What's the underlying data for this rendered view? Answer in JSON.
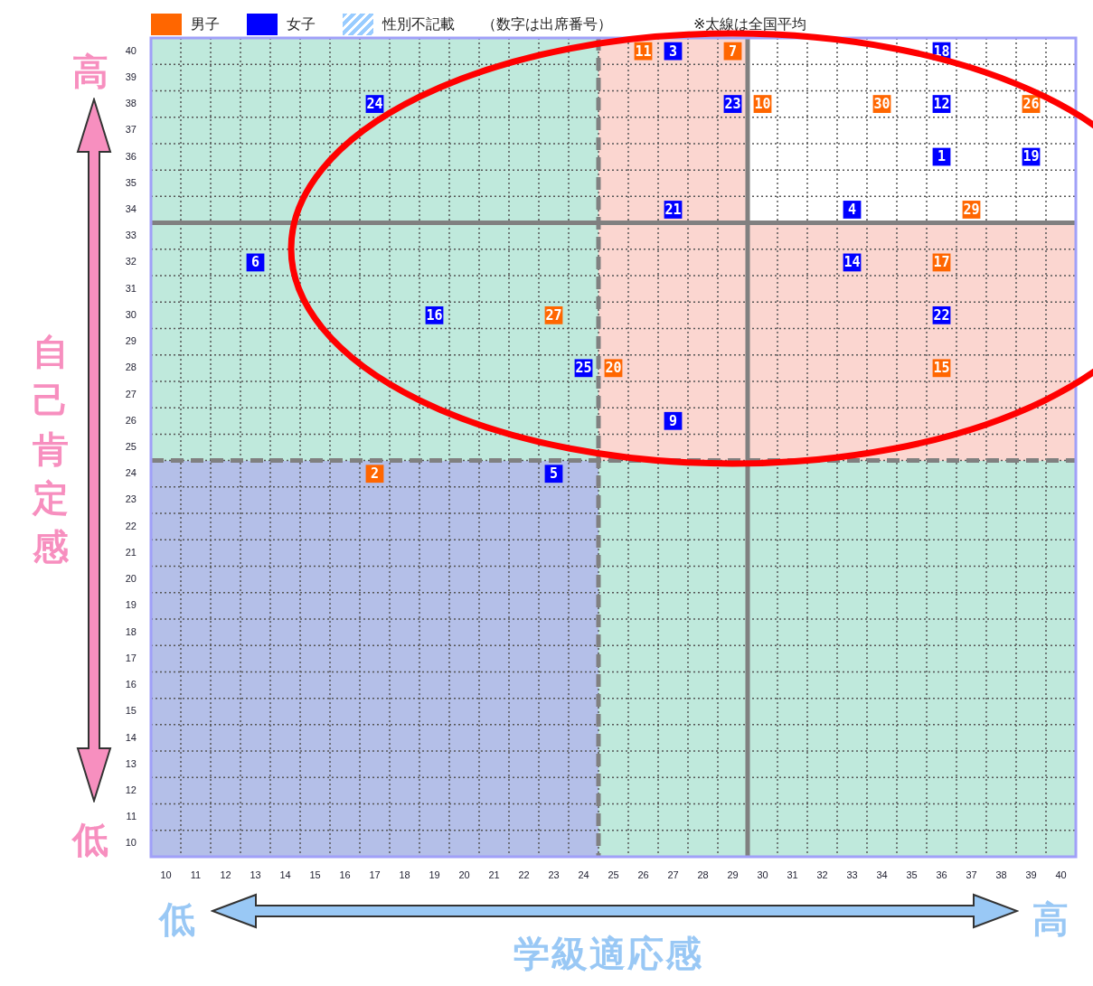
{
  "chart_data": {
    "type": "scatter",
    "xlabel": "学級適応感",
    "ylabel": "自己肯定感",
    "xlim": [
      9.5,
      40.5
    ],
    "ylim": [
      9.5,
      40.5
    ],
    "xticks": [
      10,
      11,
      12,
      13,
      14,
      15,
      16,
      17,
      18,
      19,
      20,
      21,
      22,
      23,
      24,
      25,
      26,
      27,
      28,
      29,
      30,
      31,
      32,
      33,
      34,
      35,
      36,
      37,
      38,
      39,
      40
    ],
    "yticks": [
      10,
      11,
      12,
      13,
      14,
      15,
      16,
      17,
      18,
      19,
      20,
      21,
      22,
      23,
      24,
      25,
      26,
      27,
      28,
      29,
      30,
      31,
      32,
      33,
      34,
      35,
      36,
      37,
      38,
      39,
      40
    ],
    "grid": true,
    "marker": "square",
    "legend": "top left",
    "annotations": [
      "高",
      "低",
      "低",
      "高",
      "（数字は出席番号）",
      "※太線は全国平均",
      {
        "text": "11",
        "x": 26,
        "y": 40
      },
      {
        "text": "7",
        "x": 29,
        "y": 40
      },
      {
        "text": "10",
        "x": 30,
        "y": 38
      },
      {
        "text": "30",
        "x": 34,
        "y": 38
      },
      {
        "text": "26",
        "x": 39,
        "y": 38
      },
      {
        "text": "29",
        "x": 37,
        "y": 34
      },
      {
        "text": "17",
        "x": 36,
        "y": 32
      },
      {
        "text": "27",
        "x": 23,
        "y": 30
      },
      {
        "text": "20",
        "x": 25,
        "y": 28
      },
      {
        "text": "15",
        "x": 36,
        "y": 28
      },
      {
        "text": "2",
        "x": 17,
        "y": 24
      },
      {
        "text": "3",
        "x": 27,
        "y": 40
      },
      {
        "text": "18",
        "x": 36,
        "y": 40
      },
      {
        "text": "24",
        "x": 17,
        "y": 38
      },
      {
        "text": "23",
        "x": 29,
        "y": 38
      },
      {
        "text": "12",
        "x": 36,
        "y": 38
      },
      {
        "text": "1",
        "x": 36,
        "y": 36
      },
      {
        "text": "19",
        "x": 39,
        "y": 36
      },
      {
        "text": "21",
        "x": 27,
        "y": 34
      },
      {
        "text": "4",
        "x": 33,
        "y": 34
      },
      {
        "text": "6",
        "x": 13,
        "y": 32
      },
      {
        "text": "14",
        "x": 33,
        "y": 32
      },
      {
        "text": "16",
        "x": 19,
        "y": 30
      },
      {
        "text": "22",
        "x": 36,
        "y": 30
      },
      {
        "text": "25",
        "x": 24,
        "y": 28
      },
      {
        "text": "9",
        "x": 27,
        "y": 26
      },
      {
        "text": "5",
        "x": 23,
        "y": 24
      }
    ],
    "ref_lines": [
      {
        "axis": "x",
        "value": 24.5,
        "line_style": "dashed",
        "color": "#808080"
      },
      {
        "axis": "x",
        "value": 29.5,
        "line_style": "solid",
        "color": "#808080"
      },
      {
        "axis": "y",
        "value": 24.5,
        "line_style": "dashed",
        "color": "#808080"
      },
      {
        "axis": "y",
        "value": 33.5,
        "line_style": "solid",
        "color": "#808080"
      }
    ],
    "series": [
      {
        "name": "男子",
        "color": "#ff6600",
        "x": [
          26,
          29,
          30,
          34,
          39,
          37,
          36,
          23,
          25,
          36,
          17
        ],
        "values": [
          40,
          40,
          38,
          38,
          38,
          34,
          32,
          30,
          28,
          28,
          24
        ]
      },
      {
        "name": "女子",
        "color": "#0000ff",
        "x": [
          27,
          36,
          17,
          29,
          36,
          36,
          39,
          27,
          33,
          13,
          33,
          19,
          36,
          24,
          27,
          23
        ],
        "values": [
          40,
          40,
          38,
          38,
          38,
          36,
          36,
          34,
          34,
          32,
          32,
          30,
          30,
          28,
          26,
          24
        ]
      },
      {
        "name": "性別不記載",
        "color": "#99ccff"
      }
    ]
  }
}
